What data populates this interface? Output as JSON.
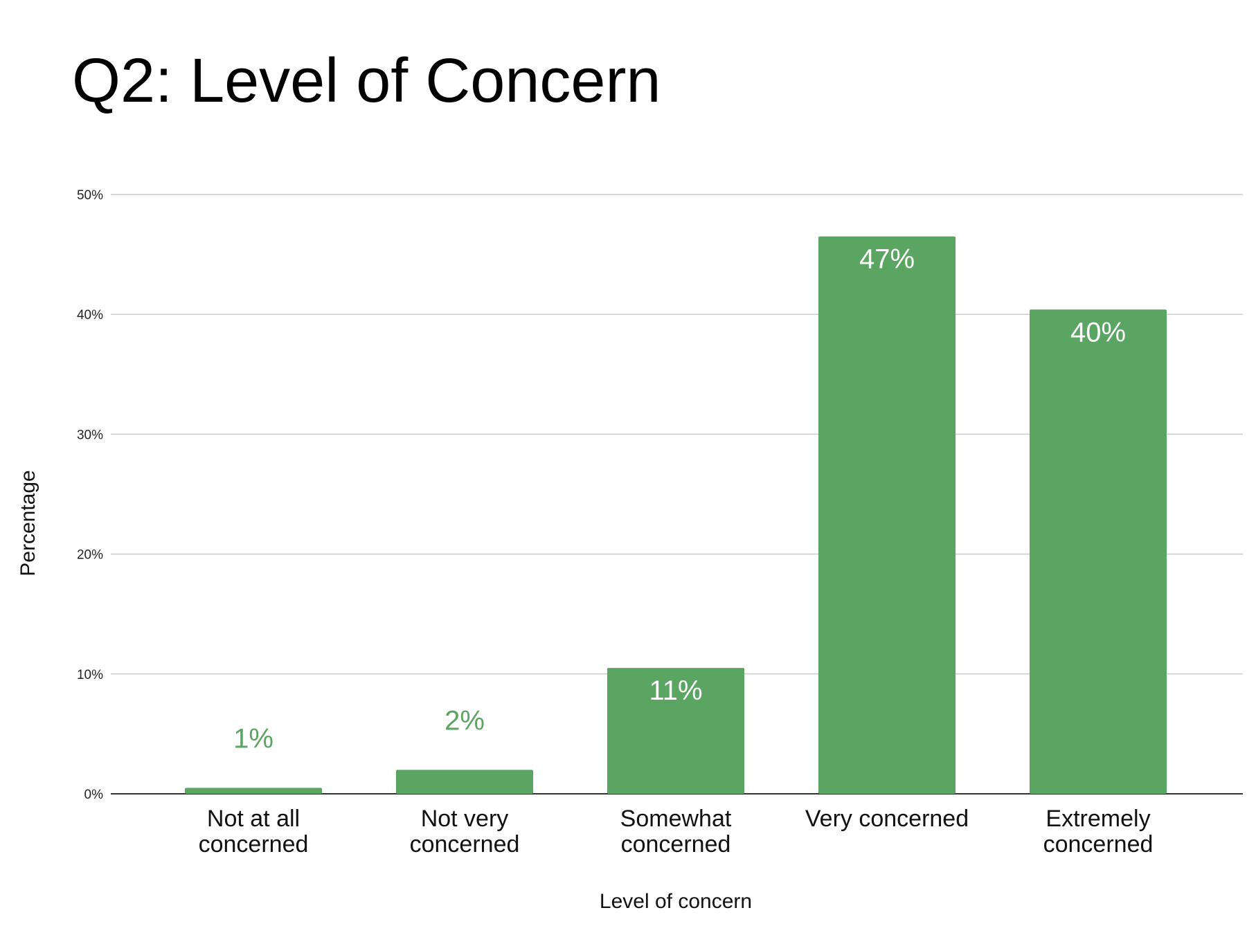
{
  "slide": {
    "title": "Q2: Level of Concern"
  },
  "chart_data": {
    "type": "bar",
    "categories": [
      [
        "Not at all",
        "concerned"
      ],
      [
        "Not very",
        "concerned"
      ],
      [
        "Somewhat",
        "concerned"
      ],
      [
        "Very concerned"
      ],
      [
        "Extremely",
        "concerned"
      ]
    ],
    "values": [
      0.5,
      2,
      10.5,
      46.5,
      40.4
    ],
    "data_labels": [
      "1%",
      "2%",
      "11%",
      "47%",
      "40%"
    ],
    "xlabel": "Level of concern",
    "ylabel": "Percentage",
    "ylim": [
      0,
      50
    ],
    "yticks": [
      0,
      10,
      20,
      30,
      40,
      50
    ],
    "ytick_labels": [
      "0%",
      "10%",
      "20%",
      "30%",
      "40%",
      "50%"
    ],
    "grid": true,
    "legend": "none",
    "colors": {
      "bar": "#5ba562",
      "label_inside": "#ffffff",
      "label_outside": "#5ba562",
      "gridline": "#cccccc",
      "baseline": "#333333"
    }
  }
}
